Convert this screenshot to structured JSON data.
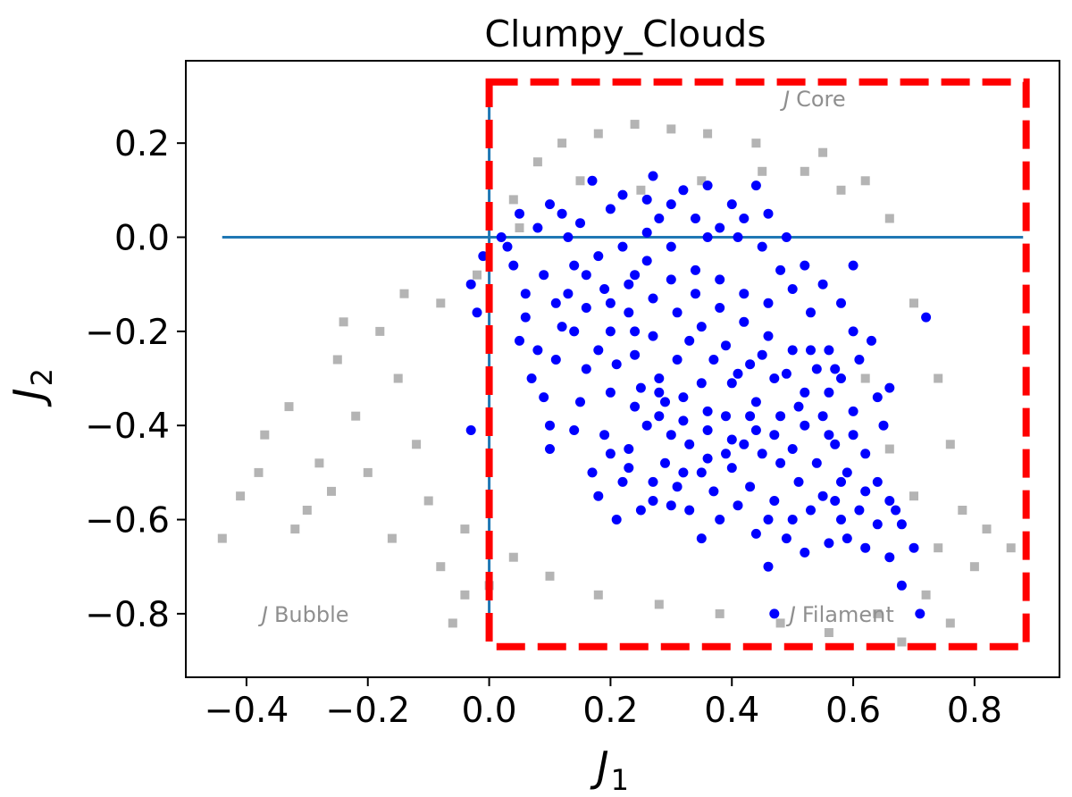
{
  "chart_data": {
    "type": "scatter",
    "title": "Clumpy_Clouds",
    "xlabel": {
      "main": "J",
      "sub": "1"
    },
    "ylabel": {
      "main": "J",
      "sub": "2"
    },
    "xlim": [
      -0.5,
      0.94
    ],
    "ylim": [
      -0.935,
      0.375
    ],
    "xticks": [
      -0.4,
      -0.2,
      0.0,
      0.2,
      0.4,
      0.6,
      0.8
    ],
    "yticks": [
      0.2,
      0.0,
      -0.2,
      -0.4,
      -0.6,
      -0.8
    ],
    "xtick_labels": [
      "−0.4",
      "−0.2",
      "0.0",
      "0.2",
      "0.4",
      "0.6",
      "0.8"
    ],
    "ytick_labels": [
      "0.2",
      "0.0",
      "−0.2",
      "−0.4",
      "−0.6",
      "−0.8"
    ],
    "grid": false,
    "reference_lines": {
      "horizontal": {
        "y": 0.0,
        "x_range": [
          -0.44,
          0.88
        ],
        "color": "#1f77b4"
      },
      "vertical": {
        "x": 0.0,
        "y_range": [
          -0.8,
          0.3
        ],
        "color": "#1f77b4"
      }
    },
    "region_box": {
      "x_range": [
        0.0,
        0.885
      ],
      "y_range": [
        -0.87,
        0.33
      ],
      "color": "#ff0000",
      "style": "dashed"
    },
    "annotations": [
      {
        "id": "core",
        "symbol": "J",
        "text": "Core",
        "x": 0.485,
        "y": 0.295
      },
      {
        "id": "bubble",
        "symbol": "J",
        "text": "Bubble",
        "x": -0.375,
        "y": -0.8
      },
      {
        "id": "filament",
        "symbol": "J",
        "text": "Filament",
        "x": 0.495,
        "y": -0.8
      }
    ],
    "series": [
      {
        "role": "background",
        "marker": "square",
        "color": "#b4b4b4",
        "points": [
          [
            -0.44,
            -0.64
          ],
          [
            -0.41,
            -0.55
          ],
          [
            -0.37,
            -0.42
          ],
          [
            -0.33,
            -0.36
          ],
          [
            -0.3,
            -0.58
          ],
          [
            -0.28,
            -0.48
          ],
          [
            -0.25,
            -0.26
          ],
          [
            -0.22,
            -0.38
          ],
          [
            -0.2,
            -0.5
          ],
          [
            -0.18,
            -0.2
          ],
          [
            -0.15,
            -0.3
          ],
          [
            -0.12,
            -0.44
          ],
          [
            -0.1,
            -0.56
          ],
          [
            -0.08,
            -0.14
          ],
          [
            -0.06,
            -0.82
          ],
          [
            -0.04,
            -0.62
          ],
          [
            -0.02,
            -0.08
          ],
          [
            0.0,
            -0.74
          ],
          [
            0.04,
            0.08
          ],
          [
            0.08,
            0.16
          ],
          [
            0.12,
            0.2
          ],
          [
            0.18,
            0.22
          ],
          [
            0.24,
            0.24
          ],
          [
            0.3,
            0.23
          ],
          [
            0.36,
            0.22
          ],
          [
            0.44,
            0.2
          ],
          [
            0.52,
            0.14
          ],
          [
            0.58,
            0.1
          ],
          [
            0.62,
            0.12
          ],
          [
            0.66,
            0.04
          ],
          [
            0.7,
            -0.14
          ],
          [
            0.74,
            -0.3
          ],
          [
            0.76,
            -0.44
          ],
          [
            0.78,
            -0.58
          ],
          [
            0.8,
            -0.7
          ],
          [
            0.82,
            -0.62
          ],
          [
            0.86,
            -0.66
          ],
          [
            0.72,
            -0.76
          ],
          [
            0.64,
            -0.8
          ],
          [
            0.56,
            -0.84
          ],
          [
            0.48,
            -0.82
          ],
          [
            0.38,
            -0.8
          ],
          [
            0.28,
            -0.78
          ],
          [
            0.18,
            -0.76
          ],
          [
            0.1,
            -0.72
          ],
          [
            0.04,
            -0.68
          ],
          [
            0.76,
            -0.82
          ],
          [
            0.68,
            -0.86
          ],
          [
            0.55,
            0.18
          ],
          [
            0.35,
            0.12
          ],
          [
            0.25,
            0.1
          ],
          [
            0.15,
            0.12
          ],
          [
            0.05,
            0.02
          ],
          [
            0.45,
            0.14
          ],
          [
            0.62,
            -0.3
          ],
          [
            0.66,
            -0.45
          ],
          [
            0.7,
            -0.55
          ],
          [
            0.74,
            -0.66
          ],
          [
            -0.38,
            -0.5
          ],
          [
            -0.32,
            -0.62
          ],
          [
            -0.26,
            -0.54
          ],
          [
            -0.24,
            -0.18
          ],
          [
            -0.14,
            -0.12
          ],
          [
            -0.16,
            -0.64
          ],
          [
            -0.08,
            -0.7
          ],
          [
            -0.04,
            -0.76
          ]
        ]
      },
      {
        "role": "selected",
        "marker": "circle",
        "color": "#0000ff",
        "points": [
          [
            -0.03,
            -0.41
          ],
          [
            -0.03,
            -0.1
          ],
          [
            -0.02,
            -0.16
          ],
          [
            -0.01,
            -0.04
          ],
          [
            0.72,
            -0.17
          ],
          [
            0.71,
            -0.8
          ],
          [
            0.68,
            -0.74
          ],
          [
            0.47,
            -0.8
          ],
          [
            0.46,
            -0.7
          ],
          [
            0.17,
            0.12
          ],
          [
            0.27,
            0.13
          ],
          [
            0.36,
            0.11
          ],
          [
            0.44,
            0.11
          ],
          [
            0.6,
            -0.06
          ],
          [
            0.66,
            -0.32
          ],
          [
            0.7,
            -0.66
          ],
          [
            0.12,
            0.05
          ],
          [
            0.1,
            0.07
          ],
          [
            0.08,
            0.02
          ],
          [
            0.05,
            0.05
          ],
          [
            0.02,
            0.0
          ],
          [
            0.03,
            -0.02
          ],
          [
            0.04,
            -0.06
          ],
          [
            0.06,
            -0.17
          ],
          [
            0.08,
            -0.24
          ],
          [
            0.09,
            -0.34
          ],
          [
            0.1,
            -0.4
          ],
          [
            0.1,
            -0.45
          ],
          [
            0.14,
            -0.41
          ],
          [
            0.17,
            -0.5
          ],
          [
            0.18,
            -0.55
          ],
          [
            0.21,
            -0.6
          ],
          [
            0.22,
            -0.52
          ],
          [
            0.25,
            -0.58
          ],
          [
            0.27,
            -0.52
          ],
          [
            0.3,
            -0.57
          ],
          [
            0.33,
            -0.58
          ],
          [
            0.35,
            -0.64
          ],
          [
            0.38,
            -0.6
          ],
          [
            0.44,
            -0.63
          ],
          [
            0.5,
            -0.6
          ],
          [
            0.52,
            -0.67
          ],
          [
            0.56,
            -0.65
          ],
          [
            0.59,
            -0.64
          ],
          [
            0.62,
            -0.66
          ],
          [
            0.64,
            -0.61
          ],
          [
            0.66,
            -0.68
          ],
          [
            0.68,
            -0.61
          ],
          [
            0.66,
            -0.56
          ],
          [
            0.62,
            -0.46
          ],
          [
            0.65,
            -0.4
          ],
          [
            0.6,
            -0.37
          ],
          [
            0.58,
            -0.3
          ],
          [
            0.56,
            -0.24
          ],
          [
            0.53,
            -0.16
          ],
          [
            0.5,
            -0.11
          ],
          [
            0.48,
            -0.07
          ],
          [
            0.45,
            -0.02
          ],
          [
            0.41,
            0.0
          ],
          [
            0.38,
            0.02
          ],
          [
            0.34,
            0.04
          ],
          [
            0.3,
            0.07
          ],
          [
            0.26,
            0.08
          ],
          [
            0.22,
            0.09
          ],
          [
            0.2,
            0.06
          ],
          [
            0.15,
            0.03
          ],
          [
            0.14,
            -0.06
          ],
          [
            0.13,
            -0.12
          ],
          [
            0.12,
            -0.19
          ],
          [
            0.16,
            -0.28
          ],
          [
            0.2,
            -0.33
          ],
          [
            0.24,
            -0.36
          ],
          [
            0.28,
            -0.38
          ],
          [
            0.3,
            -0.42
          ],
          [
            0.33,
            -0.44
          ],
          [
            0.36,
            -0.47
          ],
          [
            0.4,
            -0.49
          ],
          [
            0.42,
            -0.44
          ],
          [
            0.45,
            -0.46
          ],
          [
            0.48,
            -0.48
          ],
          [
            0.5,
            -0.45
          ],
          [
            0.52,
            -0.4
          ],
          [
            0.55,
            -0.38
          ],
          [
            0.57,
            -0.44
          ],
          [
            0.59,
            -0.5
          ],
          [
            0.55,
            -0.55
          ],
          [
            0.51,
            -0.52
          ],
          [
            0.47,
            -0.56
          ],
          [
            0.43,
            -0.53
          ],
          [
            0.39,
            -0.38
          ],
          [
            0.35,
            -0.31
          ],
          [
            0.31,
            -0.26
          ],
          [
            0.27,
            -0.21
          ],
          [
            0.23,
            -0.16
          ],
          [
            0.19,
            -0.11
          ],
          [
            0.18,
            -0.04
          ],
          [
            0.22,
            -0.02
          ],
          [
            0.26,
            -0.05
          ],
          [
            0.3,
            -0.09
          ],
          [
            0.34,
            -0.12
          ],
          [
            0.38,
            -0.15
          ],
          [
            0.42,
            -0.18
          ],
          [
            0.46,
            -0.21
          ],
          [
            0.5,
            -0.24
          ],
          [
            0.54,
            -0.28
          ],
          [
            0.47,
            -0.3
          ],
          [
            0.43,
            -0.27
          ],
          [
            0.39,
            -0.23
          ],
          [
            0.35,
            -0.19
          ],
          [
            0.31,
            -0.16
          ],
          [
            0.27,
            -0.13
          ],
          [
            0.23,
            -0.1
          ],
          [
            0.2,
            -0.2
          ],
          [
            0.24,
            -0.25
          ],
          [
            0.28,
            -0.3
          ],
          [
            0.32,
            -0.34
          ],
          [
            0.36,
            -0.37
          ],
          [
            0.4,
            -0.31
          ],
          [
            0.44,
            -0.35
          ],
          [
            0.48,
            -0.38
          ],
          [
            0.52,
            -0.33
          ],
          [
            0.56,
            -0.33
          ],
          [
            0.6,
            -0.2
          ],
          [
            0.63,
            -0.22
          ],
          [
            0.58,
            -0.14
          ],
          [
            0.55,
            -0.1
          ],
          [
            0.52,
            -0.06
          ],
          [
            0.49,
            0.0
          ],
          [
            0.46,
            0.05
          ],
          [
            0.4,
            0.07
          ],
          [
            0.32,
            0.1
          ],
          [
            0.07,
            -0.3
          ],
          [
            0.11,
            -0.26
          ],
          [
            0.15,
            -0.35
          ],
          [
            0.19,
            -0.42
          ],
          [
            0.23,
            -0.45
          ],
          [
            0.26,
            -0.4
          ],
          [
            0.29,
            -0.48
          ],
          [
            0.32,
            -0.5
          ],
          [
            0.37,
            -0.54
          ],
          [
            0.41,
            -0.57
          ],
          [
            0.46,
            -0.6
          ],
          [
            0.49,
            -0.64
          ],
          [
            0.53,
            -0.58
          ],
          [
            0.57,
            -0.56
          ],
          [
            0.61,
            -0.58
          ],
          [
            0.64,
            -0.52
          ],
          [
            0.67,
            -0.58
          ],
          [
            0.62,
            -0.54
          ],
          [
            0.58,
            -0.6
          ],
          [
            0.16,
            -0.15
          ],
          [
            0.21,
            -0.27
          ],
          [
            0.25,
            -0.32
          ],
          [
            0.29,
            -0.35
          ],
          [
            0.33,
            -0.22
          ],
          [
            0.37,
            -0.26
          ],
          [
            0.41,
            -0.29
          ],
          [
            0.45,
            -0.25
          ],
          [
            0.49,
            -0.29
          ],
          [
            0.53,
            -0.24
          ],
          [
            0.57,
            -0.28
          ],
          [
            0.61,
            -0.26
          ],
          [
            0.64,
            -0.34
          ],
          [
            0.6,
            -0.42
          ],
          [
            0.56,
            -0.42
          ],
          [
            0.44,
            -0.41
          ],
          [
            0.4,
            -0.43
          ],
          [
            0.36,
            -0.41
          ],
          [
            0.32,
            -0.39
          ],
          [
            0.28,
            -0.33
          ],
          [
            0.24,
            -0.2
          ],
          [
            0.2,
            -0.14
          ],
          [
            0.16,
            -0.08
          ],
          [
            0.13,
            0.0
          ],
          [
            0.09,
            -0.08
          ],
          [
            0.06,
            -0.12
          ],
          [
            0.05,
            -0.22
          ],
          [
            0.34,
            -0.07
          ],
          [
            0.38,
            -0.09
          ],
          [
            0.42,
            -0.12
          ],
          [
            0.46,
            -0.14
          ],
          [
            0.3,
            -0.02
          ],
          [
            0.26,
            0.01
          ],
          [
            0.42,
            0.04
          ],
          [
            0.36,
            0.0
          ],
          [
            0.28,
            0.04
          ],
          [
            0.24,
            -0.08
          ],
          [
            0.18,
            -0.24
          ],
          [
            0.14,
            -0.2
          ],
          [
            0.11,
            -0.14
          ],
          [
            0.43,
            -0.38
          ],
          [
            0.47,
            -0.42
          ],
          [
            0.51,
            -0.36
          ],
          [
            0.54,
            -0.48
          ],
          [
            0.58,
            -0.52
          ],
          [
            0.39,
            -0.46
          ],
          [
            0.35,
            -0.5
          ],
          [
            0.31,
            -0.53
          ],
          [
            0.27,
            -0.56
          ],
          [
            0.23,
            -0.49
          ],
          [
            0.2,
            -0.46
          ]
        ]
      }
    ]
  }
}
